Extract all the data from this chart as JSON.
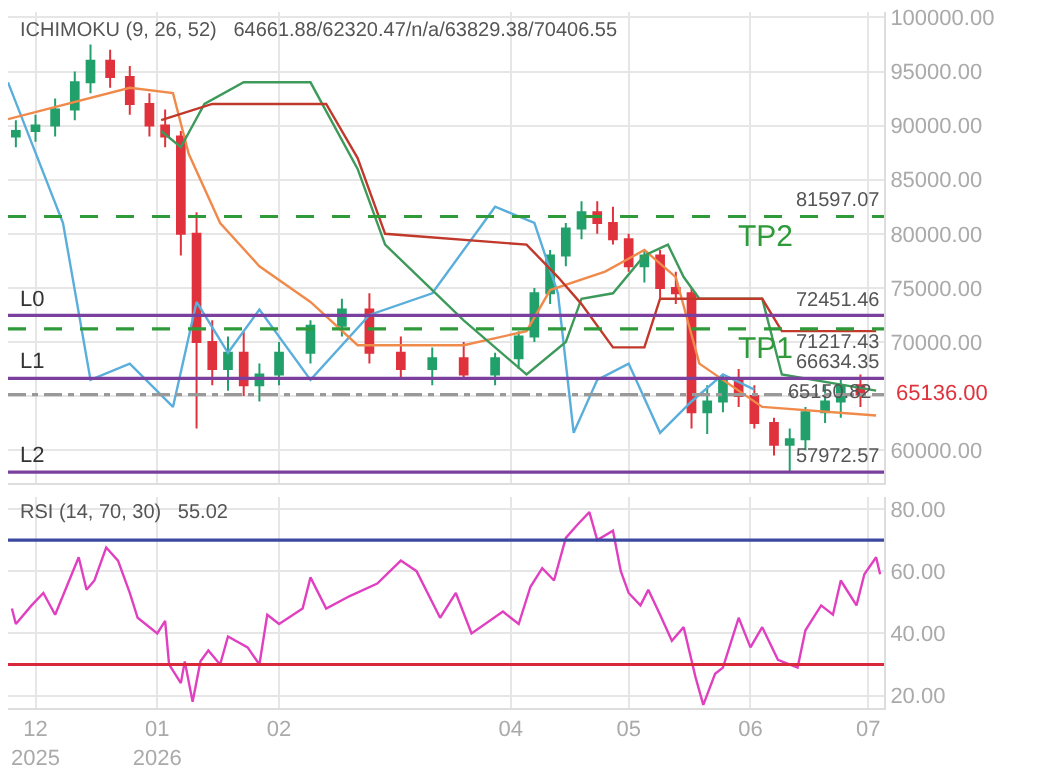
{
  "chart_data": [
    {
      "type": "candlestick",
      "title": "ICHIMOKU (9, 26, 52)   64661.88/62320.47/n/a/63829.38/70406.55",
      "x": [
        "2025-11-26",
        "2025-12-01",
        "2025-12-06",
        "2025-12-11",
        "2025-12-15",
        "2025-12-20",
        "2025-12-25",
        "2025-12-30",
        "2026-01-03",
        "2026-01-07",
        "2026-01-11",
        "2026-01-15",
        "2026-01-19",
        "2026-01-23",
        "2026-01-27",
        "2026-02-01",
        "2026-02-09",
        "2026-02-17",
        "2026-02-24",
        "2026-03-04",
        "2026-03-12",
        "2026-03-20",
        "2026-03-28",
        "2026-04-03",
        "2026-04-07",
        "2026-04-11",
        "2026-04-15",
        "2026-04-19",
        "2026-04-23",
        "2026-04-27",
        "2026-05-01",
        "2026-05-05",
        "2026-05-09",
        "2026-05-13",
        "2026-05-17",
        "2026-05-21",
        "2026-05-25",
        "2026-05-29",
        "2026-06-02",
        "2026-06-07",
        "2026-06-11",
        "2026-06-15",
        "2026-06-20",
        "2026-06-24",
        "2026-06-29"
      ],
      "ohlc": [
        [
          89000,
          90500,
          88000,
          89500
        ],
        [
          89500,
          91000,
          88500,
          90000
        ],
        [
          90000,
          92500,
          89000,
          91500
        ],
        [
          91500,
          95000,
          90500,
          94000
        ],
        [
          94000,
          97500,
          93000,
          96000
        ],
        [
          96000,
          97000,
          93500,
          94500
        ],
        [
          94500,
          95500,
          91000,
          92000
        ],
        [
          92000,
          93000,
          89000,
          90000
        ],
        [
          90000,
          91500,
          88000,
          89000
        ],
        [
          89000,
          89500,
          78000,
          80000
        ],
        [
          80000,
          82000,
          62000,
          70000
        ],
        [
          70000,
          72000,
          66000,
          67500
        ],
        [
          67500,
          70500,
          65500,
          69000
        ],
        [
          69000,
          71000,
          65000,
          66000
        ],
        [
          66000,
          68000,
          64500,
          67000
        ],
        [
          67000,
          70000,
          66000,
          69000
        ],
        [
          69000,
          72000,
          68000,
          71500
        ],
        [
          71500,
          74000,
          70500,
          73000
        ],
        [
          73000,
          74500,
          68000,
          69000
        ],
        [
          69000,
          70500,
          66500,
          67500
        ],
        [
          67500,
          69500,
          66000,
          68500
        ],
        [
          68500,
          70000,
          66500,
          67000
        ],
        [
          67000,
          69000,
          66000,
          68500
        ],
        [
          68500,
          71000,
          67500,
          70500
        ],
        [
          70500,
          75000,
          70000,
          74500
        ],
        [
          74500,
          78500,
          73500,
          78000
        ],
        [
          78000,
          81000,
          77000,
          80500
        ],
        [
          80500,
          83000,
          79500,
          82000
        ],
        [
          82000,
          83000,
          80000,
          81000
        ],
        [
          81000,
          82500,
          79000,
          79500
        ],
        [
          79500,
          80000,
          76500,
          77000
        ],
        [
          77000,
          78500,
          75500,
          78000
        ],
        [
          78000,
          78500,
          74000,
          75000
        ],
        [
          75000,
          76500,
          73500,
          74500
        ],
        [
          74500,
          75000,
          62000,
          63500
        ],
        [
          63500,
          66000,
          61500,
          64500
        ],
        [
          64500,
          67000,
          63500,
          66500
        ],
        [
          66500,
          67500,
          64000,
          65000
        ],
        [
          65000,
          66000,
          62000,
          62500
        ],
        [
          62500,
          63000,
          59500,
          60500
        ],
        [
          60500,
          62000,
          58000,
          61000
        ],
        [
          61000,
          64000,
          60000,
          63500
        ],
        [
          63500,
          66000,
          62500,
          64500
        ],
        [
          64500,
          66500,
          63000,
          66000
        ],
        [
          66000,
          67000,
          64000,
          65136
        ]
      ],
      "series": [
        {
          "type": "line",
          "color": "#5aaedc",
          "x": [
            "2025-11-24",
            "2025-12-08",
            "2025-12-15",
            "2025-12-25",
            "2026-01-05",
            "2026-01-11",
            "2026-01-19",
            "2026-01-27",
            "2026-02-09",
            "2026-02-24",
            "2026-03-12",
            "2026-03-28",
            "2026-04-07",
            "2026-04-13",
            "2026-04-17",
            "2026-04-23",
            "2026-05-01",
            "2026-05-09",
            "2026-05-17",
            "2026-05-25",
            "2026-06-02"
          ],
          "values": [
            94000,
            81000,
            66500,
            68000,
            64000,
            73700,
            69000,
            73000,
            66500,
            72500,
            74500,
            82500,
            81000,
            74500,
            61600,
            66500,
            68000,
            61600,
            64500,
            67000,
            65600
          ]
        },
        {
          "type": "line",
          "color": "#f08a4b",
          "x": [
            "2025-11-24",
            "2025-12-25",
            "2026-01-05",
            "2026-01-09",
            "2026-01-17",
            "2026-01-27",
            "2026-02-09",
            "2026-02-21",
            "2026-03-20",
            "2026-04-05",
            "2026-04-11",
            "2026-04-25",
            "2026-05-05",
            "2026-05-13",
            "2026-05-19",
            "2026-06-04",
            "2026-07-03"
          ],
          "values": [
            90600,
            93500,
            93000,
            87400,
            81000,
            77000,
            73700,
            69700,
            69700,
            71000,
            74800,
            76500,
            78500,
            76000,
            68000,
            64000,
            63200
          ]
        },
        {
          "type": "line",
          "color": "#3d9a5a",
          "x": [
            "2026-01-02",
            "2026-01-07",
            "2026-01-13",
            "2026-01-23",
            "2026-02-09",
            "2026-02-21",
            "2026-02-28",
            "2026-03-20",
            "2026-04-05",
            "2026-04-15",
            "2026-04-19",
            "2026-04-27",
            "2026-05-05",
            "2026-05-11",
            "2026-05-15",
            "2026-05-19",
            "2026-06-04",
            "2026-06-09",
            "2026-07-03"
          ],
          "values": [
            89500,
            88000,
            92000,
            94000,
            94000,
            86000,
            79000,
            72000,
            67000,
            70000,
            74000,
            74500,
            78000,
            79000,
            76000,
            74000,
            74000,
            67000,
            65500
          ]
        },
        {
          "type": "line",
          "color": "#c0392b",
          "x": [
            "2026-01-02",
            "2026-01-15",
            "2026-02-13",
            "2026-02-21",
            "2026-02-28",
            "2026-04-05",
            "2026-04-13",
            "2026-04-19",
            "2026-04-27",
            "2026-05-05",
            "2026-05-09",
            "2026-06-04",
            "2026-06-09",
            "2026-07-03"
          ],
          "values": [
            90500,
            92000,
            92000,
            87000,
            80000,
            79000,
            76000,
            73500,
            69500,
            69500,
            74000,
            74000,
            71000,
            71000
          ]
        }
      ],
      "xlim": [
        "2025-11-24",
        "2026-07-05"
      ],
      "xticks": [
        {
          "value": "2025-12-01",
          "label": null
        },
        {
          "value": "2026-01-01",
          "label": null
        },
        {
          "value": "2026-02-01",
          "label": null
        },
        {
          "value": "2026-04-01",
          "label": null
        },
        {
          "value": "2026-05-01",
          "label": null
        },
        {
          "value": "2026-06-01",
          "label": null
        },
        {
          "value": "2026-07-01",
          "label": null
        }
      ],
      "ylim": [
        57000,
        100500
      ],
      "yticks": [
        {
          "value": 60000,
          "label": "60000.00"
        },
        {
          "value": 65000,
          "label": null
        },
        {
          "value": 70000,
          "label": "70000.00"
        },
        {
          "value": 75000,
          "label": "75000.00"
        },
        {
          "value": 80000,
          "label": "80000.00"
        },
        {
          "value": 85000,
          "label": "85000.00"
        },
        {
          "value": 90000,
          "label": "90000.00"
        },
        {
          "value": 95000,
          "label": "95000.00"
        },
        {
          "value": 100000,
          "label": "100000.00"
        }
      ],
      "ref_lines": [
        {
          "axis": "y",
          "value": 81597.07,
          "label": "81597.07",
          "color": "#2e9a3a",
          "line_style": "dashed"
        },
        {
          "axis": "y",
          "value": 72451.46,
          "label": "72451.46",
          "color": "#7b3f9e",
          "line_style": "solid"
        },
        {
          "axis": "y",
          "value": 71217.43,
          "label": "71217.43",
          "color": "#2e9a3a",
          "line_style": "dashed"
        },
        {
          "axis": "y",
          "value": 66634.35,
          "label": "66634.35",
          "color": "#7b3f9e",
          "line_style": "solid"
        },
        {
          "axis": "y",
          "value": 65136,
          "label": "65136.00",
          "color": "#999999",
          "line_style": "dashdot"
        },
        {
          "axis": "y",
          "value": 57972.57,
          "label": "57972.57",
          "color": "#7b3f9e",
          "line_style": "solid"
        }
      ],
      "annotations": [
        {
          "text": "L0",
          "x": "2025-11-26",
          "y": 72451.46
        },
        {
          "text": "L1",
          "x": "2025-11-26",
          "y": 66634.35
        },
        {
          "text": "L2",
          "x": "2025-11-26",
          "y": 57972.57
        },
        {
          "text": "TP2",
          "x": "2026-06-13",
          "y": 81597.07
        },
        {
          "text": "TP1",
          "x": "2026-06-13",
          "y": 71217.43
        },
        {
          "text": "65150.82",
          "x": "2026-07-03",
          "y": 66634.35
        }
      ],
      "grid": true,
      "tick_labels": "y"
    },
    {
      "type": "line",
      "title": "RSI (14, 70, 30)   55.02",
      "series": [
        {
          "color": "#e040c0",
          "x": [
            "2025-11-25",
            "2025-11-26",
            "2025-11-30",
            "2025-12-03",
            "2025-12-06",
            "2025-12-12",
            "2025-12-14",
            "2025-12-16",
            "2025-12-19",
            "2025-12-22",
            "2025-12-25",
            "2025-12-27",
            "2026-01-01",
            "2026-01-03",
            "2026-01-04",
            "2026-01-07",
            "2026-01-08",
            "2026-01-10",
            "2026-01-12",
            "2026-01-14",
            "2026-01-17",
            "2026-01-19",
            "2026-01-24",
            "2026-01-27",
            "2026-01-29",
            "2026-02-01",
            "2026-02-07",
            "2026-02-09",
            "2026-02-13",
            "2026-02-19",
            "2026-02-26",
            "2026-03-04",
            "2026-03-08",
            "2026-03-14",
            "2026-03-18",
            "2026-03-22",
            "2026-03-30",
            "2026-04-03",
            "2026-04-06",
            "2026-04-09",
            "2026-04-12",
            "2026-04-15",
            "2026-04-18",
            "2026-04-21",
            "2026-04-23",
            "2026-04-27",
            "2026-04-29",
            "2026-05-01",
            "2026-05-04",
            "2026-05-06",
            "2026-05-09",
            "2026-05-12",
            "2026-05-15",
            "2026-05-18",
            "2026-05-20",
            "2026-05-23",
            "2026-05-25",
            "2026-05-29",
            "2026-06-01",
            "2026-06-04",
            "2026-06-08",
            "2026-06-13",
            "2026-06-15",
            "2026-06-19",
            "2026-06-22",
            "2026-06-24",
            "2026-06-28",
            "2026-06-30",
            "2026-07-03",
            "2026-07-04"
          ],
          "values": [
            48,
            43,
            49,
            53,
            46,
            64.5,
            54,
            57,
            67.6,
            63.4,
            53,
            45,
            40,
            44,
            30,
            24,
            31,
            18,
            31,
            34.5,
            30,
            39,
            35.5,
            30,
            46,
            43,
            48,
            58,
            48,
            52,
            56,
            63.4,
            60,
            45,
            53,
            40,
            47,
            43,
            55,
            61,
            57,
            70.7,
            75,
            79,
            70,
            73,
            60,
            53,
            49,
            54,
            46,
            37.6,
            42,
            26,
            17,
            27,
            29,
            45,
            35.5,
            42,
            31.5,
            29,
            41,
            49,
            46,
            57,
            49,
            59,
            64.5,
            59
          ]
        }
      ],
      "xlim": [
        "2025-11-24",
        "2026-07-05"
      ],
      "xticks": [
        {
          "value": "2025-12-01",
          "label": "12\n2025"
        },
        {
          "value": "2026-01-01",
          "label": "01\n2026"
        },
        {
          "value": "2026-02-01",
          "label": "02"
        },
        {
          "value": "2026-04-01",
          "label": "04"
        },
        {
          "value": "2026-05-01",
          "label": "05"
        },
        {
          "value": "2026-06-01",
          "label": "06"
        },
        {
          "value": "2026-07-01",
          "label": "07"
        }
      ],
      "ylim": [
        16,
        84
      ],
      "yticks": [
        {
          "value": 20,
          "label": "20.00"
        },
        {
          "value": 40,
          "label": "40.00"
        },
        {
          "value": 60,
          "label": "60.00"
        },
        {
          "value": 80,
          "label": "80.00"
        }
      ],
      "ref_lines": [
        {
          "axis": "y",
          "value": 70,
          "color": "#3b4aa0",
          "line_style": "solid"
        },
        {
          "axis": "y",
          "value": 30,
          "color": "#d8283a",
          "line_style": "solid"
        }
      ],
      "grid": true,
      "marker": "none"
    }
  ]
}
